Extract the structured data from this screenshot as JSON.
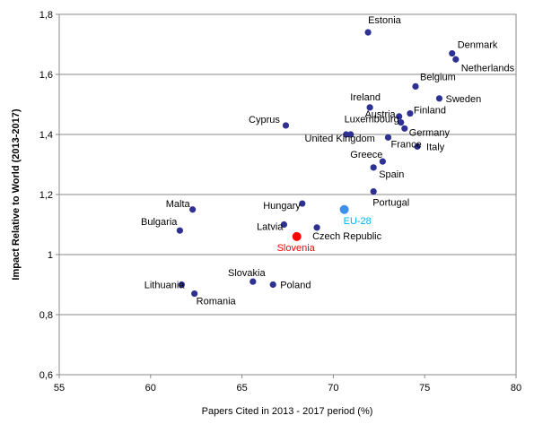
{
  "chart_data": {
    "type": "scatter",
    "title": "",
    "xlabel": "Papers Cited in 2013 - 2017 period (%)",
    "ylabel": "Impact Relative to World (2013-2017)",
    "xlim": [
      55,
      80
    ],
    "ylim": [
      0.6,
      1.8
    ],
    "xticks": [
      "55",
      "60",
      "65",
      "70",
      "75",
      "80"
    ],
    "yticks": [
      "0,6",
      "0,8",
      "1",
      "1,2",
      "1,4",
      "1,6",
      "1,8"
    ],
    "grid": "horizontal",
    "legend": "none",
    "colors": {
      "default": "#2e3192",
      "eu": "#3d8ff0",
      "highlight": "#ff0000",
      "eu_label": "#00b0f0"
    },
    "points": [
      {
        "label": "Estonia",
        "x": 71.9,
        "y": 1.74,
        "style": "default"
      },
      {
        "label": "Denmark",
        "x": 76.5,
        "y": 1.67,
        "style": "default"
      },
      {
        "label": "Netherlands",
        "x": 76.7,
        "y": 1.65,
        "style": "default"
      },
      {
        "label": "Belgium",
        "x": 74.5,
        "y": 1.56,
        "style": "default"
      },
      {
        "label": "Sweden",
        "x": 75.8,
        "y": 1.52,
        "style": "default"
      },
      {
        "label": "Ireland",
        "x": 72.0,
        "y": 1.49,
        "style": "default"
      },
      {
        "label": "Austria",
        "x": 73.6,
        "y": 1.46,
        "style": "default"
      },
      {
        "label": "Finland",
        "x": 74.2,
        "y": 1.47,
        "style": "default"
      },
      {
        "label": "Luxembourg",
        "x": 73.7,
        "y": 1.44,
        "style": "default"
      },
      {
        "label": "Germany",
        "x": 73.9,
        "y": 1.42,
        "style": "default"
      },
      {
        "label": "Cyprus",
        "x": 67.4,
        "y": 1.43,
        "style": "default"
      },
      {
        "label": "United Kingdom",
        "x": 70.7,
        "y": 1.4,
        "style": "default"
      },
      {
        "label": "",
        "x": 70.95,
        "y": 1.4,
        "style": "default"
      },
      {
        "label": "France",
        "x": 73.0,
        "y": 1.39,
        "style": "default"
      },
      {
        "label": "Italy",
        "x": 74.6,
        "y": 1.36,
        "style": "default"
      },
      {
        "label": "Greece",
        "x": 72.7,
        "y": 1.31,
        "style": "default"
      },
      {
        "label": "Spain",
        "x": 72.2,
        "y": 1.29,
        "style": "default"
      },
      {
        "label": "Portugal",
        "x": 72.2,
        "y": 1.21,
        "style": "default"
      },
      {
        "label": "Malta",
        "x": 62.3,
        "y": 1.15,
        "style": "default"
      },
      {
        "label": "Hungary",
        "x": 68.3,
        "y": 1.17,
        "style": "default"
      },
      {
        "label": "EU-28",
        "x": 70.6,
        "y": 1.15,
        "style": "eu"
      },
      {
        "label": "Bulgaria",
        "x": 61.6,
        "y": 1.08,
        "style": "default"
      },
      {
        "label": "Latvia",
        "x": 67.3,
        "y": 1.1,
        "style": "default"
      },
      {
        "label": "Czech Republic",
        "x": 69.1,
        "y": 1.09,
        "style": "default"
      },
      {
        "label": "Slovenia",
        "x": 68.0,
        "y": 1.06,
        "style": "highlight"
      },
      {
        "label": "Slovakia",
        "x": 65.6,
        "y": 0.91,
        "style": "default"
      },
      {
        "label": "Lithuania",
        "x": 61.7,
        "y": 0.9,
        "style": "default"
      },
      {
        "label": "Poland",
        "x": 66.7,
        "y": 0.9,
        "style": "default"
      },
      {
        "label": "Romania",
        "x": 62.4,
        "y": 0.87,
        "style": "default"
      }
    ]
  }
}
